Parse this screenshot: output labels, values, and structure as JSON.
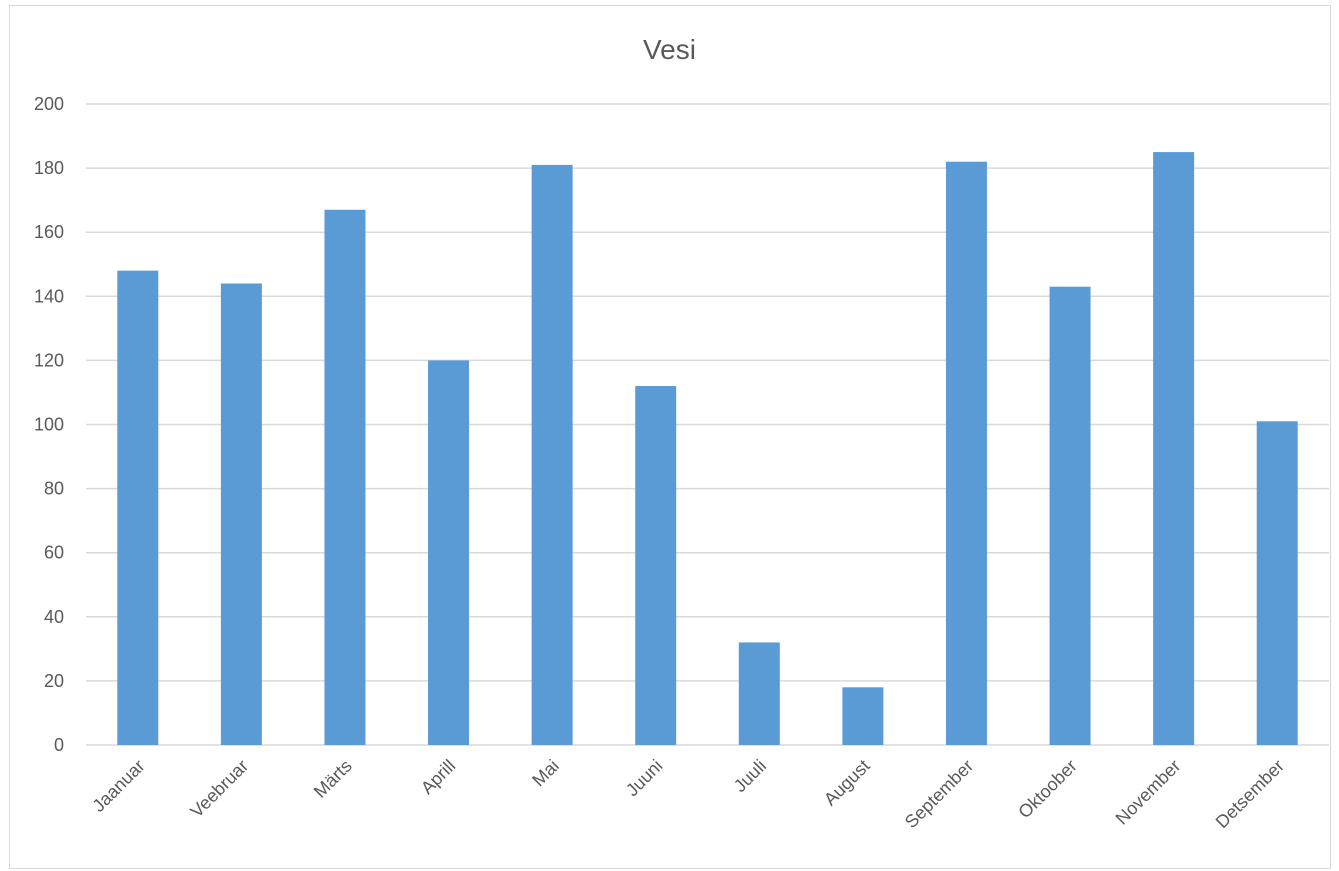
{
  "chart_data": {
    "type": "bar",
    "title": "Vesi",
    "xlabel": "",
    "ylabel": "",
    "categories": [
      "Jaanuar",
      "Veebruar",
      "Märts",
      "Aprill",
      "Mai",
      "Juuni",
      "Juuli",
      "August",
      "September",
      "Oktoober",
      "November",
      "Detsember"
    ],
    "values": [
      148,
      144,
      167,
      120,
      181,
      112,
      32,
      18,
      182,
      143,
      185,
      101
    ],
    "ylim": [
      0,
      200
    ],
    "yticks": [
      "0",
      "20",
      "40",
      "60",
      "80",
      "100",
      "120",
      "140",
      "160",
      "180",
      "200"
    ],
    "grid": true,
    "legend": "none",
    "colors": {
      "bar": "#5b9bd5",
      "grid": "#d9d9d9",
      "text": "#595959"
    }
  }
}
